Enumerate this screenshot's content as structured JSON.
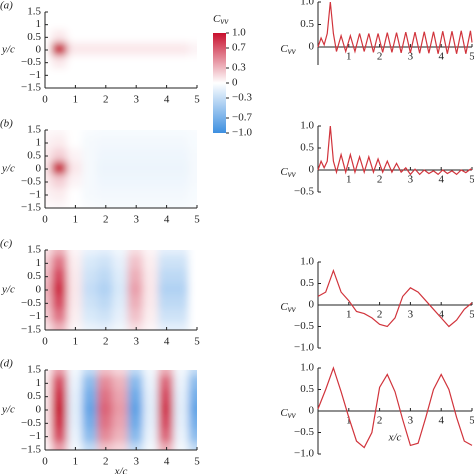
{
  "chart_data": [
    {
      "type": "heatmap",
      "panel_label": "(a)",
      "y_label": "y/c",
      "x": [
        0,
        0.5,
        1,
        1.5,
        2,
        2.5,
        3,
        3.5,
        4,
        4.5,
        5
      ],
      "y": [
        1.5,
        1,
        0.5,
        0,
        -0.5,
        -1,
        -1.5
      ],
      "z": [
        [
          0,
          0,
          0,
          0,
          0,
          0,
          0,
          0,
          0,
          0,
          0
        ],
        [
          0,
          0,
          0,
          0,
          0,
          0,
          0,
          0,
          0,
          0,
          0
        ],
        [
          0,
          0.1,
          0,
          0,
          0,
          0,
          0,
          0,
          0,
          0,
          0
        ],
        [
          0,
          1.0,
          0.1,
          0.1,
          0.1,
          0.1,
          0.1,
          0.1,
          0.1,
          0.1,
          0.05
        ],
        [
          0,
          0.1,
          0,
          0,
          0,
          0,
          0,
          0,
          0,
          0,
          0
        ],
        [
          0,
          0,
          0,
          0,
          0,
          0,
          0,
          0,
          0,
          0,
          0
        ],
        [
          0,
          0,
          0,
          0,
          0,
          0,
          0,
          0,
          0,
          0,
          0
        ]
      ],
      "xlim": [
        0,
        5
      ],
      "ylim": [
        -1.5,
        1.5
      ],
      "xticks": [
        0,
        1,
        2,
        3,
        4,
        5
      ],
      "yticks": [
        1.5,
        1,
        0.5,
        0,
        {
          "value": -0.5,
          "label": "−0.5"
        },
        {
          "value": -1,
          "label": "−1"
        },
        {
          "value": -1.5,
          "label": "−1.5"
        }
      ],
      "zlim": [
        -1,
        1
      ],
      "colormap": [
        "#3d8fe0",
        "#ffffff",
        "#c8102e"
      ],
      "colorbar": {
        "label": "C",
        "label_sub": "vv",
        "ticks": [
          {
            "value": 1,
            "label": "1.0"
          },
          0.7,
          0.3,
          0,
          {
            "value": -0.3,
            "label": "−0.3"
          },
          {
            "value": -0.7,
            "label": "−0.7"
          },
          {
            "value": -1,
            "label": "−1.0"
          }
        ]
      }
    },
    {
      "type": "line",
      "y_label": "C",
      "y_label_sub": "vv",
      "color": "#d1343c",
      "x": [
        0,
        0.1,
        0.2,
        0.3,
        0.4,
        0.5,
        0.6,
        0.75,
        0.9,
        1.05,
        1.2,
        1.35,
        1.5,
        1.65,
        1.8,
        1.95,
        2.1,
        2.25,
        2.4,
        2.55,
        2.7,
        2.85,
        3.0,
        3.15,
        3.3,
        3.45,
        3.6,
        3.75,
        3.9,
        4.05,
        4.2,
        4.35,
        4.5,
        4.65,
        4.8,
        4.95,
        5.0
      ],
      "values": [
        0,
        0.2,
        0.05,
        0.3,
        1.0,
        0.3,
        -0.1,
        0.25,
        -0.1,
        0.25,
        -0.1,
        0.3,
        -0.1,
        0.3,
        -0.12,
        0.3,
        -0.12,
        0.32,
        -0.12,
        0.32,
        -0.13,
        0.33,
        -0.13,
        0.33,
        -0.14,
        0.34,
        -0.14,
        0.34,
        -0.15,
        0.35,
        -0.15,
        0.35,
        -0.15,
        0.36,
        -0.15,
        0.36,
        0.1
      ],
      "xlim": [
        0,
        5
      ],
      "ylim": [
        -0.4,
        1
      ],
      "xticks": [
        1,
        2,
        3,
        4,
        5
      ],
      "yticks": [
        {
          "value": 1,
          "label": "1.0"
        },
        0.5,
        0
      ]
    },
    {
      "type": "heatmap",
      "panel_label": "(b)",
      "y_label": "y/c",
      "x": [
        0,
        0.5,
        1,
        1.5,
        2,
        2.5,
        3,
        3.5,
        4,
        4.5,
        5
      ],
      "y": [
        1.5,
        1,
        0.5,
        0,
        -0.5,
        -1,
        -1.5
      ],
      "z": [
        [
          0.02,
          0.03,
          0,
          -0.03,
          -0.04,
          -0.04,
          -0.04,
          -0.04,
          -0.04,
          -0.04,
          -0.03
        ],
        [
          0.05,
          0.08,
          0,
          -0.05,
          -0.06,
          -0.06,
          -0.06,
          -0.06,
          -0.06,
          -0.06,
          -0.04
        ],
        [
          0.08,
          0.2,
          0.05,
          -0.05,
          -0.08,
          -0.08,
          -0.08,
          -0.08,
          -0.08,
          -0.08,
          -0.05
        ],
        [
          0.1,
          1.0,
          0.1,
          -0.05,
          -0.1,
          -0.1,
          -0.1,
          -0.1,
          -0.1,
          -0.1,
          -0.05
        ],
        [
          0.08,
          0.2,
          0.05,
          -0.05,
          -0.08,
          -0.08,
          -0.08,
          -0.08,
          -0.08,
          -0.08,
          -0.05
        ],
        [
          0.05,
          0.08,
          0,
          -0.05,
          -0.06,
          -0.06,
          -0.06,
          -0.06,
          -0.06,
          -0.06,
          -0.04
        ],
        [
          0.02,
          0.03,
          0,
          -0.03,
          -0.04,
          -0.04,
          -0.04,
          -0.04,
          -0.04,
          -0.04,
          -0.03
        ]
      ],
      "xlim": [
        0,
        5
      ],
      "ylim": [
        -1.5,
        1.5
      ],
      "xticks": [
        0,
        1,
        2,
        3,
        4,
        5
      ],
      "yticks": [
        1.5,
        1,
        0.5,
        0,
        {
          "value": -0.5,
          "label": "−0.5"
        },
        {
          "value": -1,
          "label": "−1"
        },
        {
          "value": -1.5,
          "label": "−1.5"
        }
      ],
      "zlim": [
        -1,
        1
      ],
      "colormap": [
        "#3d8fe0",
        "#ffffff",
        "#c8102e"
      ]
    },
    {
      "type": "line",
      "y_label": "C",
      "y_label_sub": "vv",
      "color": "#d1343c",
      "x": [
        0,
        0.1,
        0.2,
        0.3,
        0.4,
        0.5,
        0.6,
        0.75,
        0.9,
        1.05,
        1.2,
        1.35,
        1.5,
        1.65,
        1.8,
        1.95,
        2.1,
        2.25,
        2.4,
        2.55,
        2.7,
        2.85,
        3.0,
        3.15,
        3.3,
        3.45,
        3.6,
        3.75,
        3.9,
        4.05,
        4.2,
        4.35,
        4.5,
        4.65,
        4.8,
        4.95,
        5.0
      ],
      "values": [
        0,
        0.2,
        0.05,
        0.2,
        1.0,
        0.2,
        -0.05,
        0.35,
        -0.05,
        0.35,
        -0.05,
        0.3,
        -0.05,
        0.3,
        -0.05,
        0.25,
        -0.05,
        0.2,
        -0.05,
        0.15,
        -0.05,
        0.05,
        -0.1,
        0.02,
        -0.1,
        0,
        -0.08,
        -0.02,
        -0.1,
        0,
        -0.08,
        -0.02,
        -0.1,
        0,
        -0.06,
        0.02,
        0
      ],
      "xlim": [
        0,
        5
      ],
      "ylim": [
        -0.5,
        1
      ],
      "xticks": [
        1,
        2,
        3,
        4,
        5
      ],
      "yticks": [
        {
          "value": 1,
          "label": "1.0"
        },
        0.5,
        0,
        {
          "value": -0.5,
          "label": "−0.5"
        }
      ]
    },
    {
      "type": "heatmap",
      "panel_label": "(c)",
      "y_label": "y/c",
      "x": [
        0,
        0.5,
        1,
        1.5,
        2,
        2.5,
        3,
        3.5,
        4,
        4.5,
        5
      ],
      "y": [
        1.5,
        1,
        0.5,
        0,
        -0.5,
        -1,
        -1.5
      ],
      "z": [
        [
          0.11,
          0.32,
          0.04,
          -0.11,
          -0.14,
          -0.07,
          0.14,
          0.04,
          -0.14,
          -0.14,
          0
        ],
        [
          0.2,
          0.59,
          0.07,
          -0.2,
          -0.26,
          -0.13,
          0.26,
          0.07,
          -0.26,
          -0.26,
          0
        ],
        [
          0.26,
          0.77,
          0.09,
          -0.26,
          -0.34,
          -0.17,
          0.34,
          0.09,
          -0.34,
          -0.34,
          0
        ],
        [
          0.3,
          0.9,
          0.1,
          -0.3,
          -0.4,
          -0.2,
          0.4,
          0.1,
          -0.4,
          -0.4,
          0
        ],
        [
          0.26,
          0.77,
          0.09,
          -0.26,
          -0.34,
          -0.17,
          0.34,
          0.09,
          -0.34,
          -0.34,
          0
        ],
        [
          0.2,
          0.59,
          0.07,
          -0.2,
          -0.26,
          -0.13,
          0.26,
          0.07,
          -0.26,
          -0.26,
          0
        ],
        [
          0.11,
          0.32,
          0.04,
          -0.11,
          -0.14,
          -0.07,
          0.14,
          0.04,
          -0.14,
          -0.14,
          0
        ]
      ],
      "xlim": [
        0,
        5
      ],
      "ylim": [
        -1.5,
        1.5
      ],
      "xticks": [
        0,
        1,
        2,
        3,
        4,
        5
      ],
      "yticks": [
        1.5,
        1,
        0.5,
        0,
        {
          "value": -0.5,
          "label": "−0.5"
        },
        {
          "value": -1,
          "label": "−1"
        },
        {
          "value": -1.5,
          "label": "−1.5"
        }
      ],
      "zlim": [
        -1,
        1
      ],
      "colormap": [
        "#3d8fe0",
        "#ffffff",
        "#c8102e"
      ]
    },
    {
      "type": "line",
      "y_label": "C",
      "y_label_sub": "vv",
      "color": "#d1343c",
      "x": [
        0,
        0.25,
        0.5,
        0.75,
        1,
        1.25,
        1.5,
        1.75,
        2,
        2.25,
        2.5,
        2.75,
        3,
        3.25,
        3.5,
        3.75,
        4,
        4.25,
        4.5,
        4.75,
        5
      ],
      "values": [
        0.2,
        0.3,
        0.8,
        0.3,
        0.1,
        -0.15,
        -0.2,
        -0.3,
        -0.45,
        -0.5,
        -0.3,
        0.2,
        0.4,
        0.3,
        0.1,
        -0.1,
        -0.3,
        -0.5,
        -0.35,
        -0.1,
        0.05
      ],
      "xlim": [
        0,
        5
      ],
      "ylim": [
        -1,
        1
      ],
      "xticks": [
        1,
        2,
        3,
        4,
        5
      ],
      "yticks": [
        {
          "value": 1,
          "label": "1.0"
        },
        0.5,
        0,
        {
          "value": -0.5,
          "label": "−0.5"
        },
        {
          "value": -1,
          "label": "−1.0"
        }
      ]
    },
    {
      "type": "heatmap",
      "panel_label": "(d)",
      "y_label": "y/c",
      "x_label": "x/c",
      "x": [
        0,
        0.5,
        1,
        1.5,
        2,
        2.5,
        3,
        3.5,
        4,
        4.5,
        5
      ],
      "y": [
        1.5,
        1,
        0.5,
        0,
        -0.5,
        -1,
        -1.5
      ],
      "z": [
        [
          0.04,
          0.4,
          -0.06,
          -0.32,
          0.26,
          0.17,
          -0.33,
          -0.06,
          0.34,
          -0.06,
          -0.32
        ],
        [
          0.08,
          0.75,
          -0.11,
          -0.6,
          0.49,
          0.32,
          -0.62,
          -0.11,
          0.64,
          -0.11,
          -0.6
        ],
        [
          0.09,
          0.9,
          -0.14,
          -0.72,
          0.59,
          0.38,
          -0.75,
          -0.14,
          0.77,
          -0.14,
          -0.72
        ],
        [
          0.1,
          1.0,
          -0.15,
          -0.8,
          0.65,
          0.42,
          -0.83,
          -0.15,
          0.85,
          -0.15,
          -0.8
        ],
        [
          0.09,
          0.9,
          -0.14,
          -0.72,
          0.59,
          0.38,
          -0.75,
          -0.14,
          0.77,
          -0.14,
          -0.72
        ],
        [
          0.08,
          0.75,
          -0.11,
          -0.6,
          0.49,
          0.32,
          -0.62,
          -0.11,
          0.64,
          -0.11,
          -0.6
        ],
        [
          0.04,
          0.4,
          -0.06,
          -0.32,
          0.26,
          0.17,
          -0.33,
          -0.06,
          0.34,
          -0.06,
          -0.32
        ]
      ],
      "xlim": [
        0,
        5
      ],
      "ylim": [
        -1.5,
        1.5
      ],
      "xticks": [
        0,
        1,
        2,
        3,
        4,
        5
      ],
      "yticks": [
        1.5,
        1,
        0.5,
        0,
        {
          "value": -0.5,
          "label": "−0.5"
        },
        {
          "value": -1,
          "label": "−1"
        },
        {
          "value": -1.5,
          "label": "−1.5"
        }
      ],
      "zlim": [
        -1,
        1
      ],
      "colormap": [
        "#3d8fe0",
        "#ffffff",
        "#c8102e"
      ]
    },
    {
      "type": "line",
      "y_label": "C",
      "y_label_sub": "vv",
      "x_label": "x/c",
      "color": "#d1343c",
      "x": [
        0,
        0.25,
        0.5,
        0.75,
        1,
        1.25,
        1.5,
        1.75,
        2,
        2.25,
        2.5,
        2.75,
        3,
        3.25,
        3.5,
        3.75,
        4,
        4.25,
        4.5,
        4.75,
        5
      ],
      "values": [
        0.05,
        0.5,
        1.0,
        0.45,
        -0.15,
        -0.7,
        -0.85,
        -0.5,
        0.55,
        0.85,
        0.45,
        -0.2,
        -0.8,
        -0.75,
        -0.15,
        0.5,
        0.85,
        0.5,
        -0.15,
        -0.7,
        -0.8
      ],
      "xlim": [
        0,
        5
      ],
      "ylim": [
        -1,
        1
      ],
      "xticks": [
        1,
        2,
        3,
        4,
        5
      ],
      "yticks": [
        {
          "value": 1,
          "label": "1.0"
        },
        0.5,
        0,
        {
          "value": -0.5,
          "label": "−0.5"
        },
        {
          "value": -1,
          "label": "−1.0"
        }
      ]
    }
  ]
}
